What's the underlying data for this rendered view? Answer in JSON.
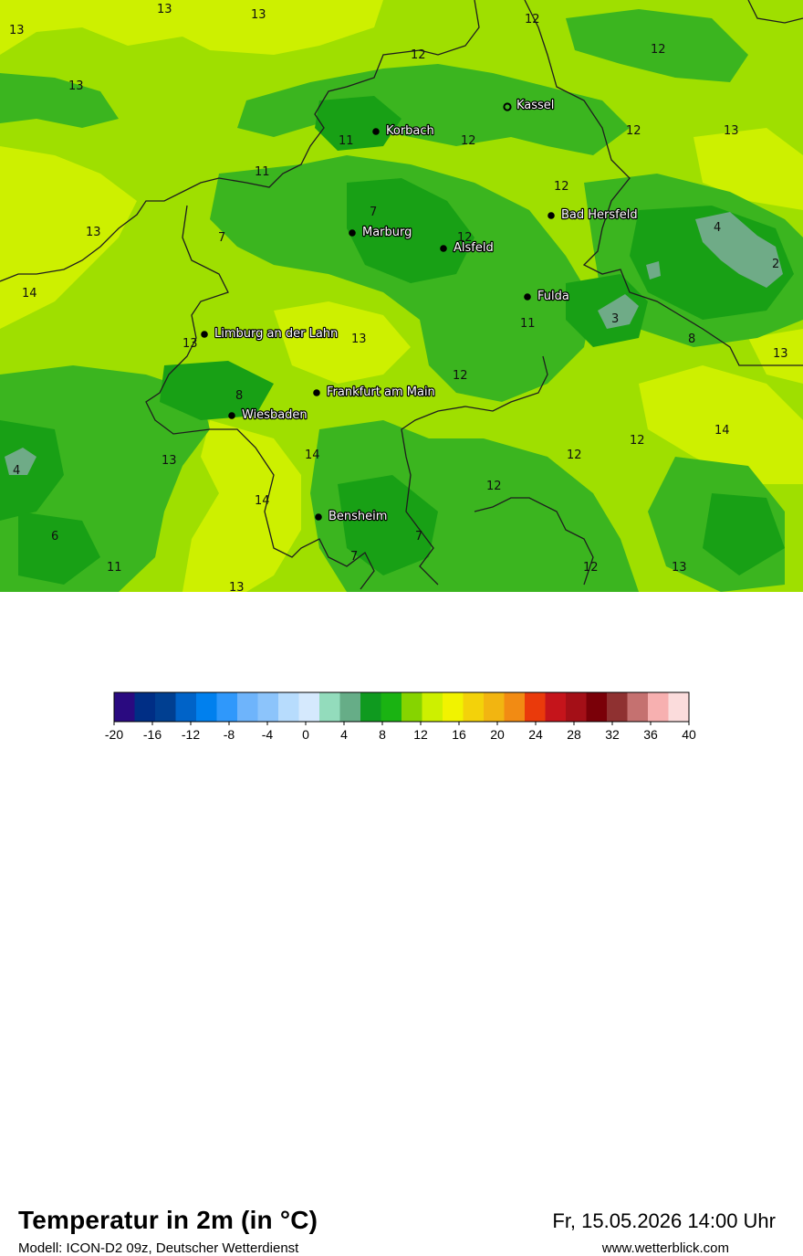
{
  "header": {
    "title": "Temperatur in 2m (in °C)",
    "subtitle": "Modell: ICON-D2 09z, Deutscher Wetterdienst",
    "datetime": "Fr, 15.05.2026 14:00 Uhr",
    "website": "www.wetterblick.com"
  },
  "colors": {
    "base": "#9fdf00",
    "pale": "#cdf000",
    "mid": "#3bb51f",
    "dark": "#18a015",
    "teal": "#6fab87",
    "border": "#1e1e1e"
  },
  "cities": [
    {
      "name": "Kassel",
      "hollow": true
    },
    {
      "name": "Korbach",
      "hollow": false
    },
    {
      "name": "Bad Hersfeld",
      "hollow": false
    },
    {
      "name": "Marburg",
      "hollow": false
    },
    {
      "name": "Alsfeld",
      "hollow": false
    },
    {
      "name": "Fulda",
      "hollow": false
    },
    {
      "name": "Limburg an der Lahn",
      "hollow": false
    },
    {
      "name": "Frankfurt am Main",
      "hollow": false
    },
    {
      "name": "Wiesbaden",
      "hollow": false
    },
    {
      "name": "Bensheim",
      "hollow": false
    }
  ],
  "temperature_labels": [
    "13",
    "13",
    "13",
    "12",
    "12",
    "13",
    "12",
    "12",
    "12",
    "11",
    "13",
    "11",
    "7",
    "12",
    "4",
    "13",
    "7",
    "12",
    "2",
    "14",
    "11",
    "3",
    "13",
    "13",
    "8",
    "13",
    "12",
    "8",
    "14",
    "12",
    "12",
    "13",
    "14",
    "4",
    "12",
    "14",
    "6",
    "7",
    "12",
    "11",
    "7",
    "13",
    "13"
  ],
  "legend": {
    "ticks": [
      "-20",
      "-16",
      "-12",
      "-8",
      "-4",
      "0",
      "4",
      "8",
      "12",
      "16",
      "20",
      "24",
      "28",
      "32",
      "36",
      "40"
    ],
    "colors": [
      "#2a0a80",
      "#002e85",
      "#003f91",
      "#0063c8",
      "#0080ee",
      "#2f98fb",
      "#6eb4fb",
      "#8cc4fb",
      "#b7dcfd",
      "#d5e9fd",
      "#93dcbc",
      "#66ad87",
      "#0f9a1f",
      "#1ab312",
      "#86d400",
      "#cdf000",
      "#f1f300",
      "#f3d20a",
      "#f2b511",
      "#f28b13",
      "#ea3a0b",
      "#c5141b",
      "#a40f17",
      "#7a0008",
      "#8f3131",
      "#c57170",
      "#f7b0b0",
      "#fbdcdc"
    ]
  }
}
